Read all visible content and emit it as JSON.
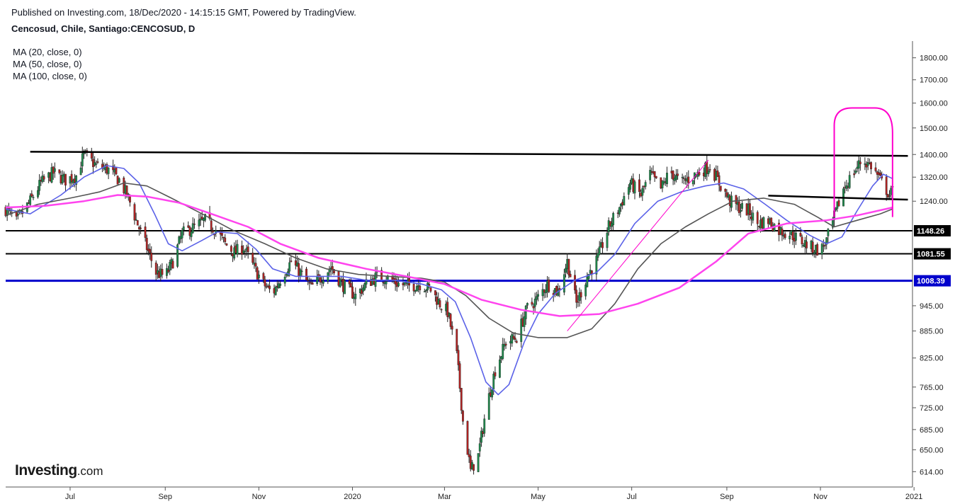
{
  "header": {
    "publish_line": "Published on Investing.com, 18/Dec/2020 - 14:15:15 GMT, Powered by TradingView.",
    "symbol_line": "Cencosud, Chile, Santiago:CENCOSUD, D"
  },
  "indicators": [
    {
      "label": "MA (20, close, 0)",
      "color": "#5b62e8"
    },
    {
      "label": "MA (50, close, 0)",
      "color": "#555555"
    },
    {
      "label": "MA (100, close, 0)",
      "color": "#ff44ee"
    }
  ],
  "logo": {
    "text": "Investing",
    "suffix": ".com"
  },
  "colors": {
    "up": "#1e8a4c",
    "down": "#b22222",
    "support": "#000000",
    "key_support": "#0000cc",
    "highlight": "#ff00cc"
  },
  "chart_data": {
    "type": "candlestick",
    "title": "Cencosud, Chile, Santiago:CENCOSUD, D",
    "y_scale": "log",
    "ylim": [
      590,
      1880
    ],
    "y_ticks": [
      614,
      650,
      685,
      725,
      765,
      825,
      885,
      945,
      1240,
      1320,
      1400,
      1500,
      1600,
      1700,
      1800
    ],
    "y_tick_labels": [
      "614.00",
      "650.00",
      "685.00",
      "725.00",
      "765.00",
      "825.00",
      "885.00",
      "945.00",
      "1240.00",
      "1320.00",
      "1400.00",
      "1500.00",
      "1600.00",
      "1700.00",
      "1800.00"
    ],
    "x_range": [
      "2019-05-20",
      "2020-12-31"
    ],
    "x_ticks": [
      {
        "date": "2019-07-01",
        "label": "Jul"
      },
      {
        "date": "2019-09-01",
        "label": "Sep"
      },
      {
        "date": "2019-11-01",
        "label": "Nov"
      },
      {
        "date": "2020-01-01",
        "label": "2020"
      },
      {
        "date": "2020-03-01",
        "label": "Mar"
      },
      {
        "date": "2020-05-01",
        "label": "May"
      },
      {
        "date": "2020-07-01",
        "label": "Jul"
      },
      {
        "date": "2020-09-01",
        "label": "Sep"
      },
      {
        "date": "2020-11-01",
        "label": "Nov"
      },
      {
        "date": "2021-01-01",
        "label": "2021"
      }
    ],
    "close_path": [
      [
        "2019-05-20",
        1215
      ],
      [
        "2019-05-27",
        1175
      ],
      [
        "2019-06-05",
        1240
      ],
      [
        "2019-06-12",
        1300
      ],
      [
        "2019-06-20",
        1335
      ],
      [
        "2019-06-28",
        1310
      ],
      [
        "2019-07-05",
        1325
      ],
      [
        "2019-07-10",
        1400
      ],
      [
        "2019-07-18",
        1360
      ],
      [
        "2019-07-26",
        1345
      ],
      [
        "2019-08-02",
        1310
      ],
      [
        "2019-08-08",
        1250
      ],
      [
        "2019-08-13",
        1180
      ],
      [
        "2019-08-19",
        1110
      ],
      [
        "2019-08-26",
        1030
      ],
      [
        "2019-09-01",
        1020
      ],
      [
        "2019-09-06",
        1060
      ],
      [
        "2019-09-12",
        1140
      ],
      [
        "2019-09-20",
        1160
      ],
      [
        "2019-09-27",
        1180
      ],
      [
        "2019-10-04",
        1150
      ],
      [
        "2019-10-10",
        1110
      ],
      [
        "2019-10-16",
        1085
      ],
      [
        "2019-10-22",
        1100
      ],
      [
        "2019-10-28",
        1050
      ],
      [
        "2019-11-04",
        1000
      ],
      [
        "2019-11-10",
        975
      ],
      [
        "2019-11-16",
        1020
      ],
      [
        "2019-11-22",
        1060
      ],
      [
        "2019-11-28",
        1030
      ],
      [
        "2019-12-05",
        990
      ],
      [
        "2019-12-12",
        1020
      ],
      [
        "2019-12-18",
        1045
      ],
      [
        "2019-12-25",
        1000
      ],
      [
        "2020-01-03",
        970
      ],
      [
        "2020-01-10",
        1000
      ],
      [
        "2020-01-17",
        1020
      ],
      [
        "2020-01-24",
        1015
      ],
      [
        "2020-01-31",
        1000
      ],
      [
        "2020-02-07",
        995
      ],
      [
        "2020-02-14",
        1000
      ],
      [
        "2020-02-21",
        985
      ],
      [
        "2020-02-27",
        950
      ],
      [
        "2020-03-03",
        930
      ],
      [
        "2020-03-09",
        830
      ],
      [
        "2020-03-13",
        700
      ],
      [
        "2020-03-18",
        615
      ],
      [
        "2020-03-23",
        640
      ],
      [
        "2020-03-28",
        720
      ],
      [
        "2020-04-03",
        800
      ],
      [
        "2020-04-10",
        860
      ],
      [
        "2020-04-17",
        870
      ],
      [
        "2020-04-24",
        940
      ],
      [
        "2020-04-30",
        960
      ],
      [
        "2020-05-07",
        1000
      ],
      [
        "2020-05-14",
        980
      ],
      [
        "2020-05-20",
        1060
      ],
      [
        "2020-05-26",
        950
      ],
      [
        "2020-06-02",
        1020
      ],
      [
        "2020-06-09",
        1070
      ],
      [
        "2020-06-16",
        1160
      ],
      [
        "2020-06-23",
        1220
      ],
      [
        "2020-06-30",
        1300
      ],
      [
        "2020-07-07",
        1260
      ],
      [
        "2020-07-13",
        1330
      ],
      [
        "2020-07-20",
        1280
      ],
      [
        "2020-07-26",
        1340
      ],
      [
        "2020-08-02",
        1300
      ],
      [
        "2020-08-09",
        1320
      ],
      [
        "2020-08-15",
        1340
      ],
      [
        "2020-08-21",
        1360
      ],
      [
        "2020-08-27",
        1300
      ],
      [
        "2020-09-03",
        1240
      ],
      [
        "2020-09-09",
        1220
      ],
      [
        "2020-09-15",
        1210
      ],
      [
        "2020-09-21",
        1170
      ],
      [
        "2020-09-28",
        1180
      ],
      [
        "2020-10-05",
        1150
      ],
      [
        "2020-10-12",
        1140
      ],
      [
        "2020-10-19",
        1120
      ],
      [
        "2020-10-26",
        1100
      ],
      [
        "2020-11-01",
        1090
      ],
      [
        "2020-11-05",
        1120
      ],
      [
        "2020-11-10",
        1190
      ],
      [
        "2020-11-16",
        1280
      ],
      [
        "2020-11-22",
        1330
      ],
      [
        "2020-11-28",
        1380
      ],
      [
        "2020-12-04",
        1360
      ],
      [
        "2020-12-10",
        1310
      ],
      [
        "2020-12-16",
        1260
      ],
      [
        "2020-12-18",
        1270
      ]
    ],
    "moving_averages": [
      {
        "name": "MA (20, close, 0)",
        "color": "#5b62e8",
        "points": [
          [
            "2019-05-20",
            1215
          ],
          [
            "2019-06-05",
            1200
          ],
          [
            "2019-06-25",
            1260
          ],
          [
            "2019-07-10",
            1320
          ],
          [
            "2019-07-25",
            1360
          ],
          [
            "2019-08-05",
            1350
          ],
          [
            "2019-08-15",
            1300
          ],
          [
            "2019-08-25",
            1200
          ],
          [
            "2019-09-03",
            1110
          ],
          [
            "2019-09-12",
            1090
          ],
          [
            "2019-09-25",
            1120
          ],
          [
            "2019-10-05",
            1145
          ],
          [
            "2019-10-18",
            1140
          ],
          [
            "2019-10-30",
            1095
          ],
          [
            "2019-11-10",
            1040
          ],
          [
            "2019-11-25",
            1020
          ],
          [
            "2019-12-10",
            1020
          ],
          [
            "2019-12-25",
            1020
          ],
          [
            "2020-01-10",
            1010
          ],
          [
            "2020-01-28",
            1010
          ],
          [
            "2020-02-15",
            1000
          ],
          [
            "2020-02-28",
            985
          ],
          [
            "2020-03-08",
            955
          ],
          [
            "2020-03-18",
            870
          ],
          [
            "2020-03-28",
            775
          ],
          [
            "2020-04-05",
            750
          ],
          [
            "2020-04-12",
            770
          ],
          [
            "2020-04-22",
            860
          ],
          [
            "2020-05-01",
            925
          ],
          [
            "2020-05-12",
            975
          ],
          [
            "2020-05-25",
            1010
          ],
          [
            "2020-06-08",
            1030
          ],
          [
            "2020-06-20",
            1080
          ],
          [
            "2020-07-03",
            1170
          ],
          [
            "2020-07-18",
            1240
          ],
          [
            "2020-08-02",
            1270
          ],
          [
            "2020-08-18",
            1290
          ],
          [
            "2020-08-30",
            1300
          ],
          [
            "2020-09-12",
            1280
          ],
          [
            "2020-09-26",
            1230
          ],
          [
            "2020-10-10",
            1180
          ],
          [
            "2020-10-25",
            1135
          ],
          [
            "2020-11-05",
            1110
          ],
          [
            "2020-11-15",
            1130
          ],
          [
            "2020-11-25",
            1210
          ],
          [
            "2020-12-05",
            1290
          ],
          [
            "2020-12-12",
            1330
          ],
          [
            "2020-12-18",
            1315
          ]
        ]
      },
      {
        "name": "MA (50, close, 0)",
        "color": "#555555",
        "points": [
          [
            "2019-05-20",
            1195
          ],
          [
            "2019-06-10",
            1230
          ],
          [
            "2019-07-01",
            1250
          ],
          [
            "2019-07-20",
            1270
          ],
          [
            "2019-08-05",
            1300
          ],
          [
            "2019-08-20",
            1290
          ],
          [
            "2019-09-05",
            1250
          ],
          [
            "2019-09-25",
            1200
          ],
          [
            "2019-10-15",
            1150
          ],
          [
            "2019-11-05",
            1110
          ],
          [
            "2019-11-25",
            1070
          ],
          [
            "2019-12-15",
            1040
          ],
          [
            "2020-01-05",
            1025
          ],
          [
            "2020-01-25",
            1020
          ],
          [
            "2020-02-15",
            1015
          ],
          [
            "2020-03-01",
            1005
          ],
          [
            "2020-03-15",
            970
          ],
          [
            "2020-03-30",
            915
          ],
          [
            "2020-04-15",
            880
          ],
          [
            "2020-05-01",
            870
          ],
          [
            "2020-05-20",
            870
          ],
          [
            "2020-06-05",
            890
          ],
          [
            "2020-06-20",
            950
          ],
          [
            "2020-07-05",
            1040
          ],
          [
            "2020-07-20",
            1110
          ],
          [
            "2020-08-05",
            1160
          ],
          [
            "2020-08-20",
            1200
          ],
          [
            "2020-09-05",
            1240
          ],
          [
            "2020-09-25",
            1250
          ],
          [
            "2020-10-15",
            1230
          ],
          [
            "2020-10-30",
            1190
          ],
          [
            "2020-11-10",
            1160
          ],
          [
            "2020-11-25",
            1180
          ],
          [
            "2020-12-10",
            1200
          ],
          [
            "2020-12-18",
            1215
          ]
        ]
      },
      {
        "name": "MA (100, close, 0)",
        "color": "#ff44ee",
        "points": [
          [
            "2019-05-20",
            1220
          ],
          [
            "2019-06-15",
            1225
          ],
          [
            "2019-07-10",
            1240
          ],
          [
            "2019-08-01",
            1260
          ],
          [
            "2019-08-20",
            1255
          ],
          [
            "2019-09-10",
            1235
          ],
          [
            "2019-10-01",
            1200
          ],
          [
            "2019-10-25",
            1160
          ],
          [
            "2019-11-15",
            1110
          ],
          [
            "2019-12-10",
            1070
          ],
          [
            "2020-01-10",
            1040
          ],
          [
            "2020-02-05",
            1020
          ],
          [
            "2020-03-01",
            1000
          ],
          [
            "2020-03-25",
            960
          ],
          [
            "2020-04-20",
            935
          ],
          [
            "2020-05-15",
            920
          ],
          [
            "2020-06-10",
            925
          ],
          [
            "2020-07-05",
            950
          ],
          [
            "2020-08-01",
            990
          ],
          [
            "2020-08-25",
            1060
          ],
          [
            "2020-09-15",
            1140
          ],
          [
            "2020-10-10",
            1170
          ],
          [
            "2020-11-05",
            1180
          ],
          [
            "2020-11-25",
            1195
          ],
          [
            "2020-12-18",
            1220
          ]
        ]
      }
    ],
    "horizontal_lines": [
      {
        "value": 1148.26,
        "label": "1148.26",
        "color": "#000000"
      },
      {
        "value": 1081.55,
        "label": "1081.55",
        "color": "#000000"
      },
      {
        "value": 1008.39,
        "label": "1008.39",
        "color": "#0000cc"
      }
    ],
    "trend_lines": [
      {
        "from": [
          "2019-06-05",
          1410
        ],
        "to": [
          "2020-12-28",
          1395
        ],
        "color": "#000000"
      },
      {
        "from": [
          "2020-09-28",
          1258
        ],
        "to": [
          "2020-12-28",
          1245
        ],
        "color": "#000000"
      },
      {
        "from": [
          "2020-05-20",
          885
        ],
        "to": [
          "2020-08-20",
          1380
        ],
        "color": "#ff00cc"
      }
    ],
    "highlight_region": {
      "x": [
        "2020-11-10",
        "2020-12-18"
      ],
      "y": [
        1190,
        1580
      ],
      "color": "#ff00cc"
    },
    "grid": false
  }
}
